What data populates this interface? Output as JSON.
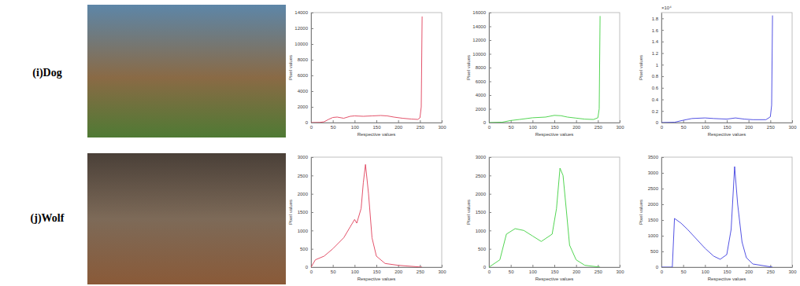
{
  "row_labels": [
    "(i)Dog",
    "(j)Wolf"
  ],
  "chart_data": [
    {
      "type": "line",
      "xlabel": "Respective values",
      "ylabel": "Pixel values",
      "xlim": [
        0,
        300
      ],
      "xticks": [
        0,
        50,
        100,
        150,
        200,
        250,
        300
      ],
      "ylim": [
        0,
        14000
      ],
      "yticks": [
        0,
        2000,
        4000,
        6000,
        8000,
        10000,
        12000,
        14000
      ],
      "x": [
        0,
        20,
        30,
        40,
        50,
        60,
        75,
        90,
        100,
        120,
        140,
        160,
        175,
        190,
        210,
        230,
        245,
        250,
        253,
        255
      ],
      "series": [
        {
          "color": "#e0405a",
          "values": [
            0,
            20,
            100,
            400,
            650,
            700,
            550,
            800,
            850,
            800,
            850,
            900,
            850,
            700,
            550,
            450,
            400,
            600,
            2000,
            13500
          ]
        }
      ]
    },
    {
      "type": "line",
      "xlabel": "Respective values",
      "ylabel": "Pixel values",
      "xlim": [
        0,
        300
      ],
      "xticks": [
        0,
        50,
        100,
        150,
        200,
        250,
        300
      ],
      "ylim": [
        0,
        16000
      ],
      "yticks": [
        0,
        2000,
        4000,
        6000,
        8000,
        10000,
        12000,
        14000,
        16000
      ],
      "x": [
        0,
        30,
        50,
        70,
        100,
        130,
        150,
        165,
        180,
        200,
        220,
        240,
        250,
        253,
        255
      ],
      "series": [
        {
          "color": "#40d040",
          "values": [
            0,
            50,
            300,
            450,
            700,
            800,
            1050,
            1000,
            800,
            650,
            500,
            450,
            700,
            2000,
            15500
          ]
        }
      ]
    },
    {
      "type": "line",
      "xlabel": "Respective values",
      "ylabel": "Pixel values",
      "annotations": [
        "×10⁴"
      ],
      "xlim": [
        0,
        300
      ],
      "xticks": [
        0,
        50,
        100,
        150,
        200,
        250,
        300
      ],
      "ylim": [
        0,
        1.9
      ],
      "yticks": [
        0,
        0.2,
        0.4,
        0.6,
        0.8,
        1,
        1.2,
        1.4,
        1.6,
        1.8
      ],
      "x": [
        0,
        30,
        50,
        70,
        100,
        120,
        150,
        170,
        190,
        210,
        240,
        250,
        253,
        255
      ],
      "series": [
        {
          "color": "#4040e0",
          "values": [
            0,
            0.005,
            0.04,
            0.07,
            0.08,
            0.07,
            0.06,
            0.08,
            0.06,
            0.05,
            0.05,
            0.1,
            0.3,
            1.85
          ]
        }
      ]
    },
    {
      "type": "line",
      "xlabel": "Respective values",
      "ylabel": "Pixel values",
      "xlim": [
        0,
        300
      ],
      "xticks": [
        0,
        50,
        100,
        150,
        200,
        250,
        300
      ],
      "ylim": [
        0,
        3000
      ],
      "yticks": [
        0,
        500,
        1000,
        1500,
        2000,
        2500,
        3000
      ],
      "x": [
        0,
        10,
        30,
        50,
        75,
        90,
        100,
        105,
        115,
        120,
        125,
        132,
        140,
        150,
        170,
        200,
        255
      ],
      "series": [
        {
          "color": "#e0405a",
          "values": [
            0,
            200,
            300,
            500,
            800,
            1100,
            1300,
            1200,
            1600,
            2300,
            2800,
            2000,
            800,
            300,
            100,
            50,
            0
          ]
        }
      ]
    },
    {
      "type": "line",
      "xlabel": "Respective values",
      "ylabel": "Pixel values",
      "xlim": [
        0,
        300
      ],
      "xticks": [
        0,
        50,
        100,
        150,
        200,
        250,
        300
      ],
      "ylim": [
        0,
        3000
      ],
      "yticks": [
        0,
        500,
        1000,
        1500,
        2000,
        2500,
        3000
      ],
      "x": [
        0,
        25,
        40,
        60,
        80,
        100,
        120,
        145,
        155,
        163,
        170,
        178,
        185,
        200,
        220,
        255
      ],
      "series": [
        {
          "color": "#40d040",
          "values": [
            0,
            200,
            900,
            1050,
            1000,
            850,
            700,
            900,
            1600,
            2700,
            2500,
            1500,
            600,
            200,
            50,
            0
          ]
        }
      ]
    },
    {
      "type": "line",
      "xlabel": "Respective values",
      "ylabel": "Pixel values",
      "xlim": [
        0,
        300
      ],
      "xticks": [
        0,
        50,
        100,
        150,
        200,
        250,
        300
      ],
      "ylim": [
        0,
        3500
      ],
      "yticks": [
        0,
        500,
        1000,
        1500,
        2000,
        2500,
        3000,
        3500
      ],
      "x": [
        0,
        25,
        30,
        45,
        60,
        80,
        100,
        120,
        135,
        150,
        160,
        168,
        175,
        185,
        195,
        210,
        255
      ],
      "series": [
        {
          "color": "#4040e0",
          "values": [
            0,
            0,
            1550,
            1400,
            1200,
            900,
            600,
            350,
            250,
            400,
            1200,
            3200,
            2000,
            800,
            300,
            100,
            0
          ]
        }
      ]
    }
  ]
}
